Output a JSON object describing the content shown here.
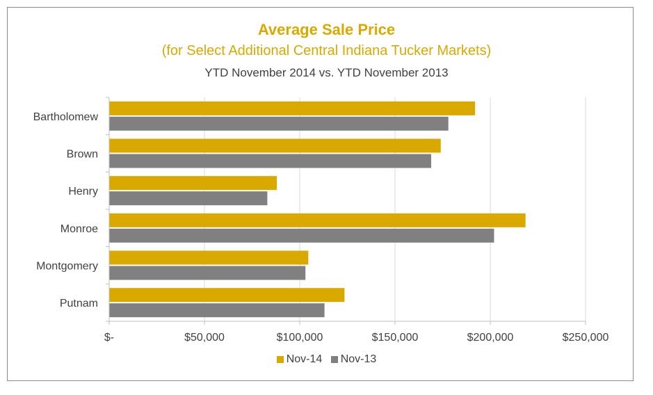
{
  "chart_data": {
    "type": "bar",
    "orientation": "horizontal",
    "title": "Average Sale Price",
    "subtitle": "(for Select Additional Central Indiana Tucker Markets)",
    "subtitle2": "YTD November 2014 vs. YTD November 2013",
    "categories": [
      "Bartholomew",
      "Brown",
      "Henry",
      "Monroe",
      "Montgomery",
      "Putnam"
    ],
    "series": [
      {
        "name": "Nov-14",
        "color": "#d9a900",
        "values": [
          192000,
          174000,
          88000,
          218500,
          104500,
          123500
        ]
      },
      {
        "name": "Nov-13",
        "color": "#808080",
        "values": [
          178000,
          169000,
          83000,
          202000,
          103000,
          113000
        ]
      }
    ],
    "xlim": [
      0,
      250000
    ],
    "x_ticks": [
      {
        "value": 0,
        "label": "$-"
      },
      {
        "value": 50000,
        "label": "$50,000"
      },
      {
        "value": 100000,
        "label": "$100,000"
      },
      {
        "value": 150000,
        "label": "$150,000"
      },
      {
        "value": 200000,
        "label": "$200,000"
      },
      {
        "value": 250000,
        "label": "$250,000"
      }
    ],
    "grid": true,
    "legend_position": "bottom"
  }
}
